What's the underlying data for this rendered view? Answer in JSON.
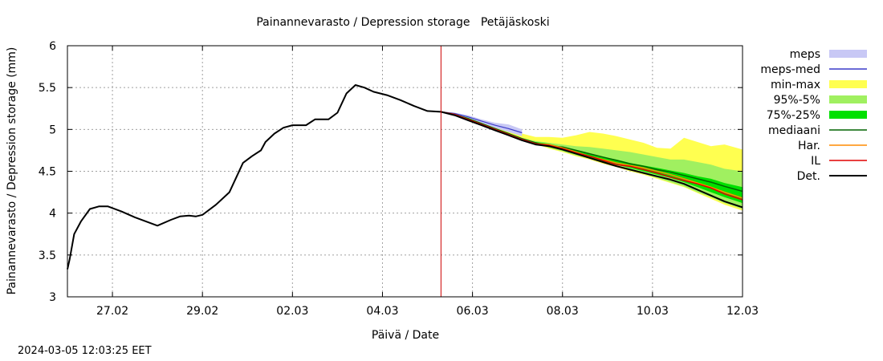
{
  "chart_data": {
    "type": "area",
    "title": "Painannevarasto / Depression storage   Petäjäskoski",
    "xlabel": "Päivä / Date",
    "ylabel": "Painannevarasto / Depression storage (mm)",
    "ylim": [
      3,
      6
    ],
    "yticks": [
      "3",
      "3.5",
      "4",
      "4.5",
      "5",
      "5.5",
      "6"
    ],
    "xlim_days": [
      0,
      15
    ],
    "xticks": [
      {
        "day": 1,
        "label": "27.02"
      },
      {
        "day": 3,
        "label": "29.02"
      },
      {
        "day": 5,
        "label": "02.03"
      },
      {
        "day": 7,
        "label": "04.03"
      },
      {
        "day": 9,
        "label": "06.03"
      },
      {
        "day": 11,
        "label": "08.03"
      },
      {
        "day": 13,
        "label": "10.03"
      },
      {
        "day": 15,
        "label": "12.03"
      }
    ],
    "grid": true,
    "legend_position": "right",
    "forecast_start_day": 8.3,
    "colors": {
      "meps": "#c8c8f5",
      "meps_med": "#3a3ac8",
      "min_max": "#ffff50",
      "p95_5": "#a0f060",
      "p75_25": "#00e000",
      "mediaani": "#006400",
      "har": "#ff8c00",
      "il": "#e00000",
      "det": "#000000",
      "now_line": "#cc0000",
      "grid": "#a0a0a0"
    },
    "legend": [
      {
        "key": "meps",
        "label": "meps",
        "style": "band"
      },
      {
        "key": "meps_med",
        "label": "meps-med",
        "style": "line"
      },
      {
        "key": "min_max",
        "label": "min-max",
        "style": "band"
      },
      {
        "key": "p95_5",
        "label": "95%-5%",
        "style": "band"
      },
      {
        "key": "p75_25",
        "label": "75%-25%",
        "style": "band"
      },
      {
        "key": "mediaani",
        "label": "mediaani",
        "style": "line"
      },
      {
        "key": "har",
        "label": "Har.",
        "style": "line"
      },
      {
        "key": "il",
        "label": "IL",
        "style": "line"
      },
      {
        "key": "det",
        "label": "Det.",
        "style": "line"
      }
    ],
    "series": {
      "observed": {
        "x": [
          0,
          0.05,
          0.15,
          0.3,
          0.5,
          0.7,
          0.9,
          1.2,
          1.5,
          2.0,
          2.3,
          2.5,
          2.7,
          2.85,
          3.0,
          3.3,
          3.6,
          3.9,
          4.1,
          4.3,
          4.4,
          4.6,
          4.8,
          5.0,
          5.3,
          5.5,
          5.8,
          6.0,
          6.2,
          6.4,
          6.6,
          6.8,
          6.95,
          7.1,
          7.4,
          7.7,
          8.0,
          8.3
        ],
        "y": [
          3.33,
          3.45,
          3.75,
          3.9,
          4.05,
          4.08,
          4.08,
          4.02,
          3.95,
          3.85,
          3.92,
          3.96,
          3.97,
          3.96,
          3.98,
          4.1,
          4.25,
          4.6,
          4.68,
          4.75,
          4.85,
          4.95,
          5.02,
          5.05,
          5.05,
          5.12,
          5.12,
          5.2,
          5.43,
          5.53,
          5.5,
          5.45,
          5.43,
          5.41,
          5.35,
          5.28,
          5.22,
          5.21
        ]
      },
      "forecast_x": [
        8.3,
        8.6,
        8.9,
        9.2,
        9.5,
        9.8,
        10.1,
        10.4,
        10.7,
        11.0,
        11.3,
        11.6,
        11.9,
        12.2,
        12.5,
        12.8,
        13.1,
        13.4,
        13.7,
        14.0,
        14.3,
        14.6,
        15.0
      ],
      "min_max": {
        "upper": [
          5.21,
          5.2,
          5.16,
          5.1,
          5.06,
          5.01,
          4.95,
          4.91,
          4.91,
          4.9,
          4.93,
          4.97,
          4.95,
          4.92,
          4.88,
          4.84,
          4.78,
          4.77,
          4.9,
          4.85,
          4.8,
          4.82,
          4.76
        ],
        "lower": [
          5.21,
          5.18,
          5.13,
          5.06,
          5.0,
          4.94,
          4.88,
          4.83,
          4.77,
          4.73,
          4.68,
          4.64,
          4.59,
          4.55,
          4.5,
          4.46,
          4.41,
          4.36,
          4.31,
          4.24,
          4.17,
          4.1,
          4.03
        ]
      },
      "p95_5": {
        "upper": [
          5.21,
          5.19,
          5.15,
          5.08,
          5.02,
          4.96,
          4.9,
          4.86,
          4.84,
          4.82,
          4.8,
          4.79,
          4.77,
          4.75,
          4.73,
          4.7,
          4.67,
          4.64,
          4.64,
          4.61,
          4.58,
          4.53,
          4.5
        ],
        "lower": [
          5.21,
          5.18,
          5.13,
          5.07,
          5.01,
          4.95,
          4.89,
          4.84,
          4.78,
          4.74,
          4.69,
          4.65,
          4.6,
          4.56,
          4.51,
          4.47,
          4.42,
          4.37,
          4.32,
          4.25,
          4.19,
          4.12,
          4.05
        ]
      },
      "p75_25": {
        "upper": [
          5.21,
          5.19,
          5.14,
          5.07,
          5.01,
          4.95,
          4.89,
          4.85,
          4.83,
          4.79,
          4.75,
          4.71,
          4.67,
          4.64,
          4.6,
          4.57,
          4.54,
          4.51,
          4.48,
          4.44,
          4.41,
          4.36,
          4.31
        ],
        "lower": [
          5.21,
          5.18,
          5.13,
          5.07,
          5.01,
          4.95,
          4.89,
          4.84,
          4.79,
          4.75,
          4.7,
          4.66,
          4.61,
          4.58,
          4.54,
          4.5,
          4.46,
          4.42,
          4.37,
          4.31,
          4.25,
          4.19,
          4.12
        ]
      },
      "meps": {
        "x": [
          8.3,
          8.6,
          8.9,
          9.2,
          9.5,
          9.8,
          10.1
        ],
        "upper": [
          5.21,
          5.2,
          5.17,
          5.12,
          5.08,
          5.06,
          5.0
        ],
        "lower": [
          5.21,
          5.18,
          5.14,
          5.08,
          5.02,
          4.97,
          4.92
        ]
      },
      "meps_med": {
        "x": [
          8.3,
          8.6,
          8.9,
          9.2,
          9.5,
          9.8,
          10.1
        ],
        "y": [
          5.21,
          5.19,
          5.15,
          5.1,
          5.05,
          5.01,
          4.96
        ]
      },
      "mediaani": [
        5.21,
        5.18,
        5.13,
        5.07,
        5.01,
        4.95,
        4.89,
        4.84,
        4.8,
        4.79,
        4.75,
        4.71,
        4.67,
        4.63,
        4.59,
        4.56,
        4.52,
        4.49,
        4.45,
        4.41,
        4.37,
        4.32,
        4.26
      ],
      "har": [
        5.21,
        5.18,
        5.12,
        5.06,
        5.0,
        4.94,
        4.88,
        4.83,
        4.82,
        4.78,
        4.73,
        4.68,
        4.64,
        4.6,
        4.57,
        4.54,
        4.5,
        4.46,
        4.41,
        4.36,
        4.31,
        4.25,
        4.18
      ],
      "il": [
        5.21,
        5.18,
        5.12,
        5.06,
        5.0,
        4.94,
        4.88,
        4.83,
        4.81,
        4.77,
        4.72,
        4.68,
        4.63,
        4.58,
        4.56,
        4.52,
        4.48,
        4.43,
        4.39,
        4.35,
        4.3,
        4.23,
        4.16
      ],
      "det": [
        5.21,
        5.17,
        5.11,
        5.05,
        4.99,
        4.93,
        4.87,
        4.82,
        4.8,
        4.76,
        4.71,
        4.66,
        4.61,
        4.56,
        4.52,
        4.48,
        4.44,
        4.4,
        4.35,
        4.28,
        4.21,
        4.14,
        4.07
      ]
    }
  },
  "footer": {
    "timestamp": "2024-03-05 12:03:25 EET"
  }
}
